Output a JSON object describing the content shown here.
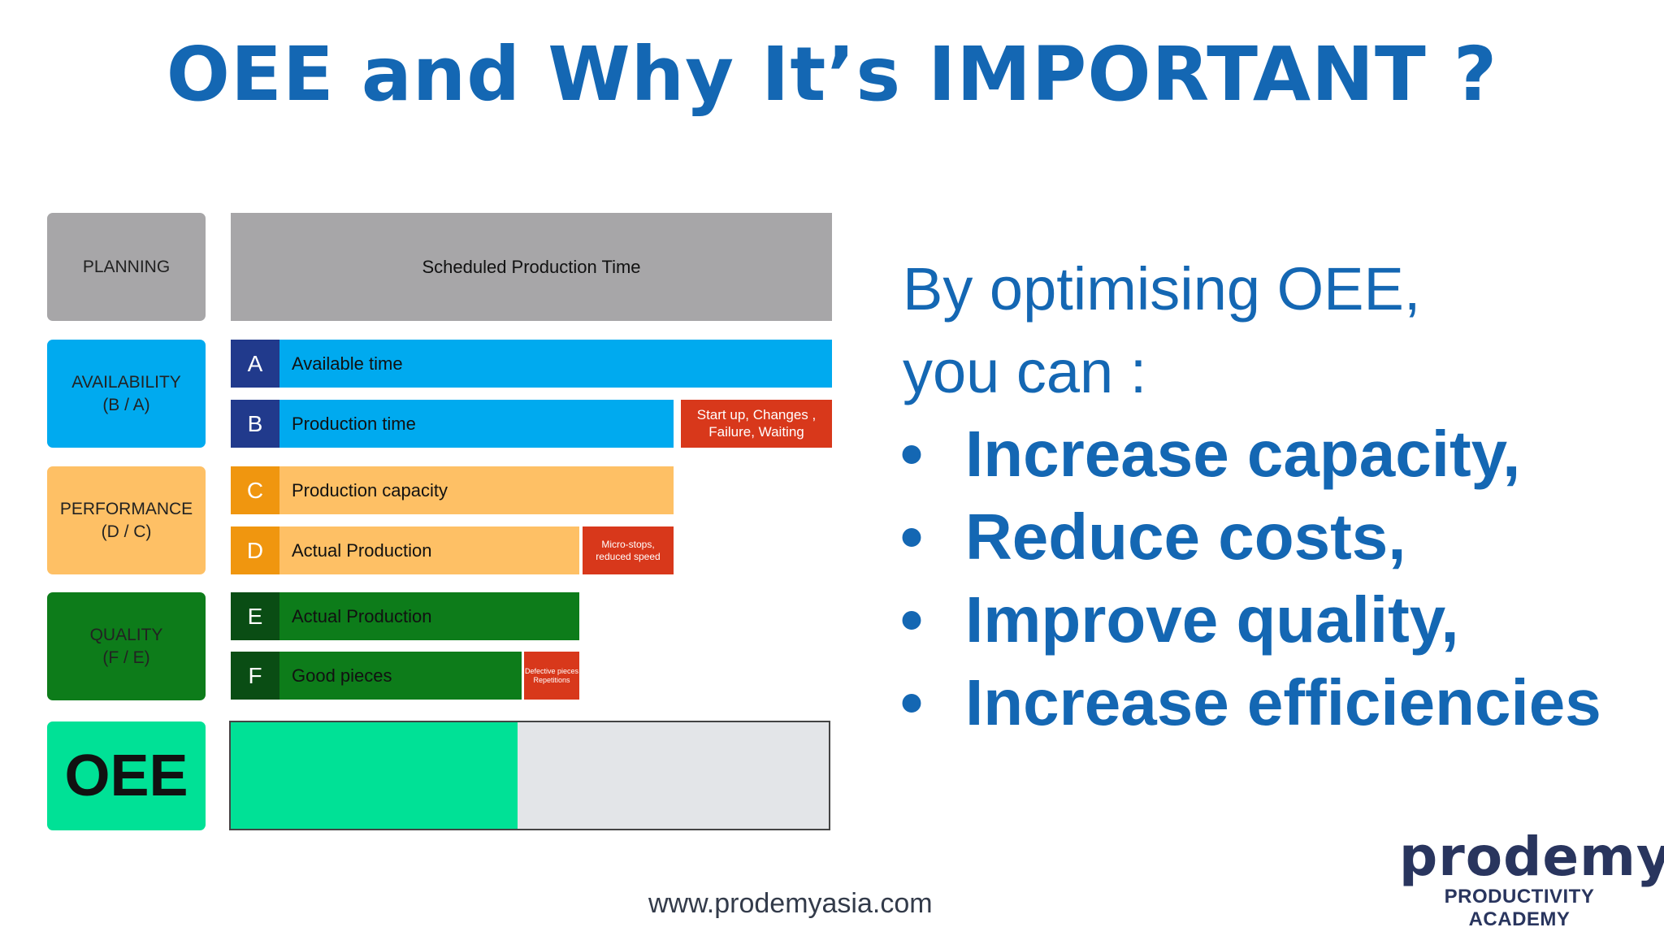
{
  "title": "OEE and Why It’s IMPORTANT ?",
  "diagram": {
    "categories": {
      "planning": "PLANNING",
      "availability": [
        "AVAILABILITY",
        "(B / A)"
      ],
      "performance": [
        "PERFORMANCE",
        "(D / C)"
      ],
      "quality": [
        "QUALITY",
        "(F / E)"
      ],
      "oee": "OEE"
    },
    "scheduled": "Scheduled Production Time",
    "bars": [
      {
        "letter": "A",
        "label": "Available time"
      },
      {
        "letter": "B",
        "label": "Production time"
      },
      {
        "letter": "C",
        "label": "Production capacity"
      },
      {
        "letter": "D",
        "label": "Actual Production"
      },
      {
        "letter": "E",
        "label": "Actual Production"
      },
      {
        "letter": "F",
        "label": "Good pieces"
      }
    ],
    "losses": {
      "availability": [
        "Start up, Changes ,",
        "Failure, Waiting"
      ],
      "performance": [
        "Micro-stops,",
        "reduced speed"
      ],
      "quality": [
        "Defective pieces",
        "Repetitions"
      ]
    },
    "oee_level": 0.48,
    "colors": {
      "planning": "#a7a6a8",
      "availability": "#00aaef",
      "availability_dark": "#213a8c",
      "performance": "#fec065",
      "performance_dark": "#f0960f",
      "quality": "#0d7c1a",
      "quality_dark": "#0a4d14",
      "loss": "#d8381b",
      "oee": "#00e196"
    }
  },
  "text": {
    "intro_line1": "By optimising OEE,",
    "intro_line2": "you can :",
    "bullet_char": "•",
    "bullets": [
      "Increase capacity,",
      "Reduce costs,",
      "Improve quality,",
      "Increase efficiencies"
    ]
  },
  "footer": {
    "url": "www.prodemyasia.com",
    "logo_word": "prodemy",
    "logo_sub": "PRODUCTIVITY ACADEMY"
  }
}
